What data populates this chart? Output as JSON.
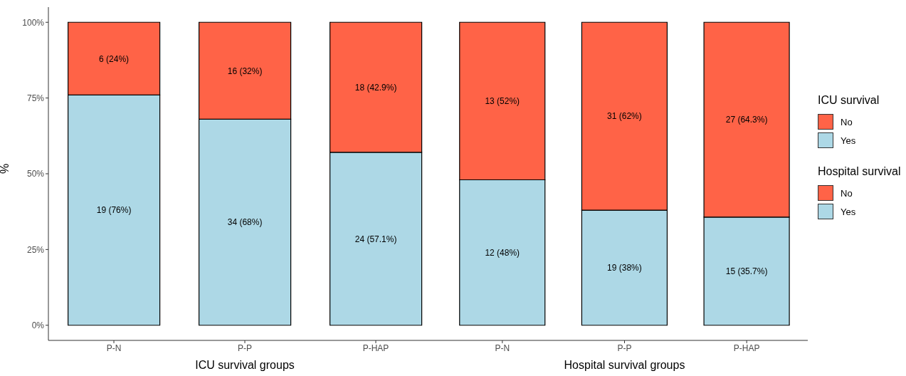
{
  "chart_data": [
    {
      "type": "bar",
      "stacked": true,
      "xlabel": "ICU survival groups",
      "ylabel": "%",
      "legend_title": "ICU survival",
      "legend": "right",
      "categories": [
        "P-N",
        "P-P",
        "P-HAP"
      ],
      "ylim": [
        -5,
        105
      ],
      "yticks": [
        {
          "value": 0,
          "label": "0%"
        },
        {
          "value": 25,
          "label": "25%"
        },
        {
          "value": 50,
          "label": "50%"
        },
        {
          "value": 75,
          "label": "75%"
        },
        {
          "value": 100,
          "label": "100%"
        }
      ],
      "grid": false,
      "series": [
        {
          "name": "Yes",
          "color": "#add8e6",
          "values": [
            76,
            68,
            57.1
          ],
          "value_labels": [
            "19 (76%)",
            "34 (68%)",
            "24 (57.1%)"
          ]
        },
        {
          "name": "No",
          "color": "#ff6347",
          "values": [
            24,
            32,
            42.9
          ],
          "value_labels": [
            "6 (24%)",
            "16 (32%)",
            "18 (42.9%)"
          ]
        }
      ]
    },
    {
      "type": "bar",
      "stacked": true,
      "xlabel": "Hospital survival groups",
      "legend_title": "Hospital survival",
      "legend": "right",
      "tick_labels": "x",
      "categories": [
        "P-N",
        "P-P",
        "P-HAP"
      ],
      "grid": false,
      "series": [
        {
          "name": "Yes",
          "color": "#add8e6",
          "values": [
            48,
            38,
            35.7
          ],
          "value_labels": [
            "12 (48%)",
            "19 (38%)",
            "15 (35.7%)"
          ]
        },
        {
          "name": "No",
          "color": "#ff6347",
          "values": [
            52,
            62,
            64.3
          ],
          "value_labels": [
            "13 (52%)",
            "31 (62%)",
            "27 (64.3%)"
          ]
        }
      ]
    }
  ]
}
